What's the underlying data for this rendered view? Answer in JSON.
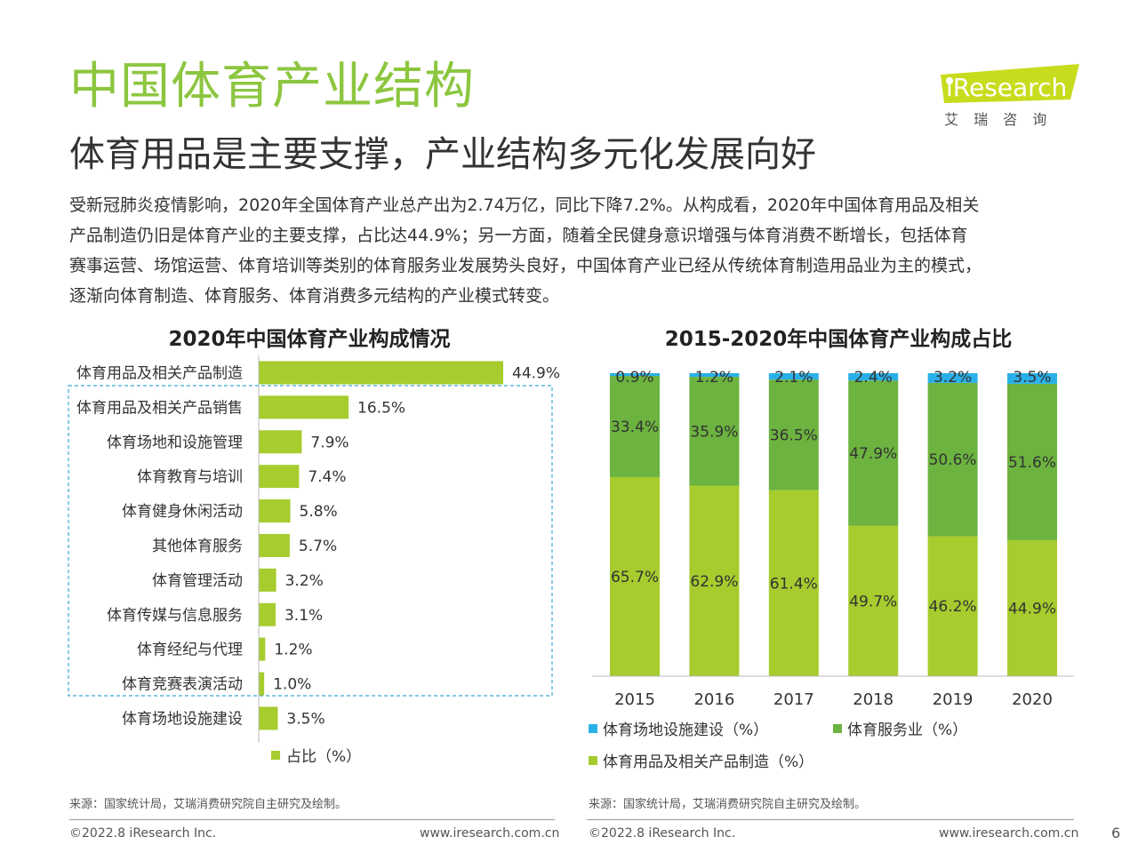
{
  "header": {
    "title": "中国体育产业结构",
    "subtitle": "体育用品是主要支撑，产业结构多元化发展向好",
    "intro_lines": [
      "受新冠肺炎疫情影响，2020年全国体育产业总产出为2.74万亿，同比下降7.2%。从构成看，2020年中国体育用品及相关",
      "产品制造仍旧是体育产业的主要支撑，占比达44.9%；另一方面，随着全民健身意识增强与体育消费不断增长，包括体育",
      "赛事运营、场馆运营、体育培训等类别的体育服务业发展势头良好，中国体育产业已经从传统体育制造用品业为主的模式，",
      "逐渐向体育制造、体育服务、体育消费多元结构的产业模式转变。"
    ]
  },
  "logo": {
    "brand": "iResearch",
    "cn": "艾 瑞 咨 询"
  },
  "colors": {
    "green_title": "#8cc63f",
    "bar_light": "#a6cc2e",
    "bar_dark": "#6cb33f",
    "bar_blue": "#2ab0e8"
  },
  "left_chart_title": "2020年中国体育产业构成情况",
  "right_chart_title": "2015-2020年中国体育产业构成占比",
  "chart_data": [
    {
      "type": "bar",
      "orientation": "horizontal",
      "title": "2020年中国体育产业构成情况",
      "categories": [
        "体育用品及相关产品制造",
        "体育用品及相关产品销售",
        "体育场地和设施管理",
        "体育教育与培训",
        "体育健身休闲活动",
        "其他体育服务",
        "体育管理活动",
        "体育传媒与信息服务",
        "体育经纪与代理",
        "体育竞赛表演活动",
        "体育场地设施建设"
      ],
      "values": [
        44.9,
        16.5,
        7.9,
        7.4,
        5.8,
        5.7,
        3.2,
        3.1,
        1.2,
        1.0,
        3.5
      ],
      "value_labels": [
        "44.9%",
        "16.5%",
        "7.9%",
        "7.4%",
        "5.8%",
        "5.7%",
        "3.2%",
        "3.1%",
        "1.2%",
        "1.0%",
        "3.5%"
      ],
      "legend": "占比（%）",
      "legend_position": "bottom",
      "xlim": [
        0,
        50
      ],
      "grid": false
    },
    {
      "type": "bar",
      "stacked": true,
      "title": "2015-2020年中国体育产业构成占比",
      "categories": [
        "2015",
        "2016",
        "2017",
        "2018",
        "2019",
        "2020"
      ],
      "series": [
        {
          "name": "体育用品及相关产品制造（%）",
          "color": "#a6cc2e",
          "values": [
            65.7,
            62.9,
            61.4,
            49.7,
            46.2,
            44.9
          ],
          "labels": [
            "65.7%",
            "62.9%",
            "61.4%",
            "49.7%",
            "46.2%",
            "44.9%"
          ]
        },
        {
          "name": "体育服务业（%）",
          "color": "#6cb33f",
          "values": [
            33.4,
            35.9,
            36.5,
            47.9,
            50.6,
            51.6
          ],
          "labels": [
            "33.4%",
            "35.9%",
            "36.5%",
            "47.9%",
            "50.6%",
            "51.6%"
          ]
        },
        {
          "name": "体育场地设施建设（%）",
          "color": "#2ab0e8",
          "values": [
            0.9,
            1.2,
            2.1,
            2.4,
            3.2,
            3.5
          ],
          "labels": [
            "0.9%",
            "1.2%",
            "2.1%",
            "2.4%",
            "3.2%",
            "3.5%"
          ]
        }
      ],
      "legend_order": [
        "体育场地设施建设（%）",
        "体育服务业（%）",
        "体育用品及相关产品制造（%）"
      ],
      "legend_position": "bottom",
      "ylim": [
        0,
        100
      ],
      "grid": false
    }
  ],
  "footer": {
    "source_left": "来源：国家统计局，艾瑞消费研究院自主研究及绘制。",
    "source_right": "来源：国家统计局，艾瑞消费研究院自主研究及绘制。",
    "copyright_left": "©2022.8 iResearch Inc.",
    "url_left": "www.iresearch.com.cn",
    "copyright_right": "©2022.8 iResearch Inc.",
    "url_right": "www.iresearch.com.cn",
    "page_number": "6"
  }
}
